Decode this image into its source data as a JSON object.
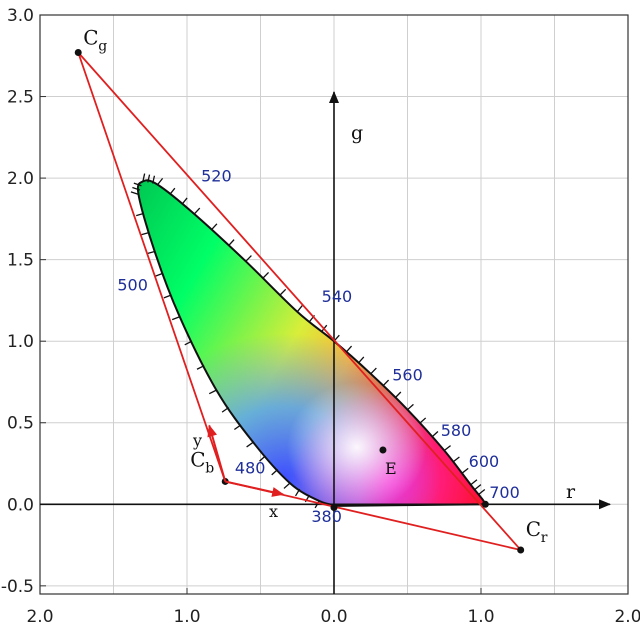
{
  "chart_data": {
    "type": "scatter",
    "title": "",
    "xlim": [
      -2.0,
      2.0
    ],
    "ylim": [
      -0.55,
      3.0
    ],
    "x_ticks": [
      {
        "v": -2.0,
        "label": "2.0"
      },
      {
        "v": -1.0,
        "label": "1.0"
      },
      {
        "v": 0.0,
        "label": "0.0"
      },
      {
        "v": 1.0,
        "label": "1.0"
      },
      {
        "v": 2.0,
        "label": "2.0"
      }
    ],
    "y_ticks": [
      {
        "v": 3.0,
        "label": "3.0"
      },
      {
        "v": 2.5,
        "label": "2.5"
      },
      {
        "v": 2.0,
        "label": "2.0"
      },
      {
        "v": 1.5,
        "label": "1.5"
      },
      {
        "v": 1.0,
        "label": "1.0"
      },
      {
        "v": 0.5,
        "label": "0.5"
      },
      {
        "v": 0.0,
        "label": "0.0"
      },
      {
        "v": -0.5,
        "label": "-0.5"
      }
    ],
    "grid": true,
    "axes": {
      "r_label": "r",
      "g_label": "g"
    },
    "primaries": [
      {
        "name": "C",
        "sub": "g",
        "r": -1.74,
        "g": 2.77
      },
      {
        "name": "C",
        "sub": "b",
        "r": -0.74,
        "g": 0.14
      },
      {
        "name": "C",
        "sub": "r",
        "r": 1.27,
        "g": -0.28
      }
    ],
    "white_point": {
      "label": "E",
      "r": 0.333,
      "g": 0.333
    },
    "oblique_axes": {
      "x_label": "x",
      "y_label": "y"
    },
    "spectral_locus": [
      {
        "r": 0.03,
        "g": -0.01
      },
      {
        "r": -0.1,
        "g": 0.02
      },
      {
        "r": -0.3,
        "g": 0.13
      },
      {
        "r": -0.55,
        "g": 0.38
      },
      {
        "r": -0.8,
        "g": 0.7
      },
      {
        "r": -1.05,
        "g": 1.15
      },
      {
        "r": -1.22,
        "g": 1.55
      },
      {
        "r": -1.33,
        "g": 1.9
      },
      {
        "r": -1.3,
        "g": 1.98
      },
      {
        "r": -1.2,
        "g": 1.96
      },
      {
        "r": -0.95,
        "g": 1.78
      },
      {
        "r": -0.6,
        "g": 1.49
      },
      {
        "r": -0.25,
        "g": 1.18
      },
      {
        "r": 0.0,
        "g": 1.0
      },
      {
        "r": 0.25,
        "g": 0.8
      },
      {
        "r": 0.5,
        "g": 0.58
      },
      {
        "r": 0.75,
        "g": 0.33
      },
      {
        "r": 0.93,
        "g": 0.12
      },
      {
        "r": 1.01,
        "g": 0.03
      },
      {
        "r": 1.03,
        "g": 0.0
      }
    ],
    "wavelength_labels": [
      {
        "label": "380",
        "r": -0.05,
        "g": -0.11
      },
      {
        "label": "480",
        "r": -0.57,
        "g": 0.19
      },
      {
        "label": "500",
        "r": -1.37,
        "g": 1.31
      },
      {
        "label": "520",
        "r": -0.8,
        "g": 1.98
      },
      {
        "label": "540",
        "r": 0.02,
        "g": 1.24
      },
      {
        "label": "560",
        "r": 0.5,
        "g": 0.76
      },
      {
        "label": "580",
        "r": 0.83,
        "g": 0.42
      },
      {
        "label": "600",
        "r": 1.02,
        "g": 0.23
      },
      {
        "label": "700",
        "r": 1.16,
        "g": 0.04
      }
    ]
  }
}
